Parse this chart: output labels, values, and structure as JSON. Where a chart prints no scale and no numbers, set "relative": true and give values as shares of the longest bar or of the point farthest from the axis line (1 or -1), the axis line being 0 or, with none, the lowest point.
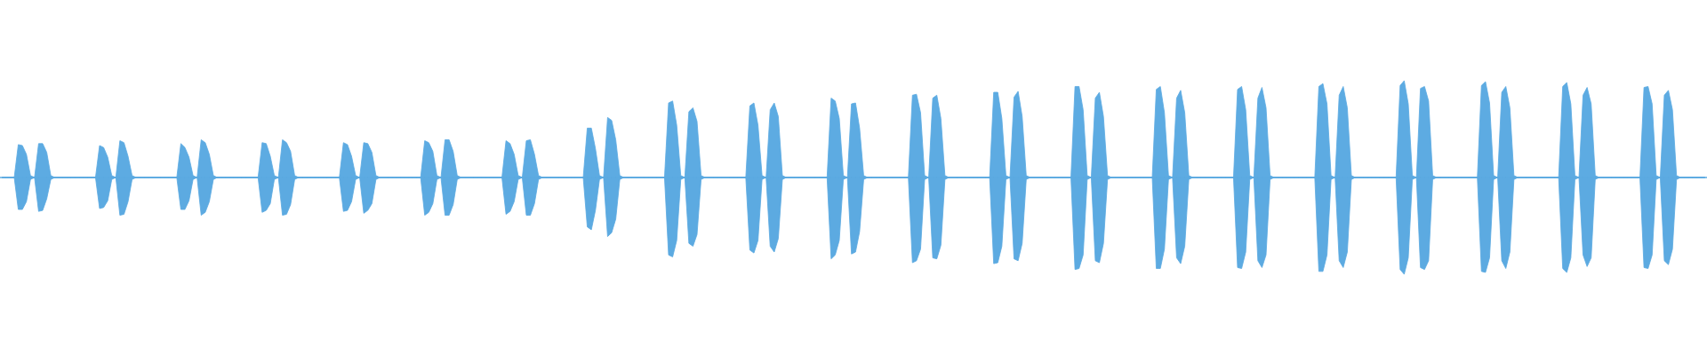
{
  "chart_data": {
    "type": "area",
    "relative": true,
    "categories": [
      null,
      null,
      null,
      null,
      null,
      null,
      null,
      null,
      null,
      null,
      null,
      null,
      null,
      null,
      null,
      null,
      null,
      null,
      null,
      null,
      null,
      null,
      null,
      null,
      null,
      null,
      null,
      null,
      null,
      null,
      null,
      null,
      null,
      null,
      null,
      null,
      null,
      null,
      null,
      null,
      null,
      null,
      null,
      null,
      null,
      null,
      null,
      null,
      null,
      null,
      null,
      null,
      null,
      null,
      null,
      null,
      null,
      null,
      null,
      null,
      null,
      null,
      null,
      null,
      null,
      null,
      null,
      null,
      null,
      null,
      null,
      null,
      null,
      null,
      null,
      null,
      null,
      null,
      null,
      null,
      null,
      null,
      null,
      null,
      null,
      null,
      null,
      null,
      null,
      null,
      null,
      null,
      null,
      null,
      null,
      null,
      null,
      null,
      null,
      null,
      null,
      null,
      null,
      null,
      null,
      null,
      null,
      null,
      null,
      null,
      null,
      null,
      null,
      null,
      null,
      null,
      null,
      null,
      null,
      null,
      null,
      null,
      null,
      null,
      null,
      null,
      null,
      null,
      null,
      null,
      null,
      null,
      null,
      null,
      null,
      null,
      null,
      null,
      null,
      null,
      null,
      null,
      null,
      null,
      null,
      null,
      null,
      null,
      null,
      null,
      null,
      null,
      null,
      null,
      null,
      null,
      null,
      null,
      null,
      null,
      null,
      null,
      null,
      null,
      null,
      null,
      null,
      null,
      null,
      null,
      null,
      null,
      null,
      null,
      null,
      null,
      null,
      null,
      null,
      null,
      null,
      null,
      null,
      null,
      null,
      null,
      null,
      null,
      null,
      null,
      null,
      null,
      null,
      null,
      null,
      null,
      null,
      null,
      null,
      null,
      null,
      null,
      null,
      null,
      null,
      null,
      null,
      null,
      null,
      null,
      null,
      null,
      null,
      null,
      null,
      null,
      null,
      null,
      null,
      null,
      null,
      null,
      null,
      null,
      null,
      null,
      null,
      null,
      null,
      null,
      null,
      null,
      null,
      null,
      null,
      null,
      null,
      null,
      null,
      null,
      null,
      null,
      null,
      null,
      null,
      null,
      null,
      null,
      null,
      null,
      null,
      null,
      null,
      null,
      null,
      null,
      null,
      null,
      null,
      null,
      null,
      null,
      null,
      null,
      null,
      null,
      null,
      null,
      null,
      null,
      null,
      null,
      null,
      null,
      null,
      null,
      null,
      null,
      null,
      null,
      null,
      null,
      null,
      null,
      null,
      null,
      null,
      null,
      null,
      null,
      null,
      null,
      null,
      null,
      null,
      null,
      null,
      null,
      null,
      null,
      null,
      null,
      null,
      null,
      null,
      null,
      null,
      null,
      null,
      null,
      null,
      null,
      null,
      null,
      null,
      null,
      null,
      null,
      null,
      null,
      null,
      null,
      null,
      null,
      null,
      null,
      null,
      null,
      null,
      null,
      null,
      null,
      null,
      null,
      null,
      null,
      null,
      null,
      null,
      null,
      null,
      null,
      null,
      null,
      null,
      null,
      null,
      null,
      null,
      null,
      null,
      null,
      null,
      null,
      null,
      null,
      null,
      null,
      null,
      null,
      null,
      null,
      null,
      null,
      null,
      null,
      null,
      null,
      null,
      null,
      null,
      null,
      null,
      null,
      null,
      null,
      null,
      null,
      null,
      null,
      null,
      null,
      null,
      null,
      null,
      null,
      null,
      null,
      null,
      null,
      null,
      null,
      null,
      null,
      null,
      null,
      null,
      null,
      null,
      null,
      null,
      null,
      null,
      null,
      null,
      null,
      null,
      null,
      null,
      null,
      null,
      null,
      null,
      null,
      null,
      null,
      null,
      null,
      null,
      null
    ],
    "series": [
      {
        "color": "#5dabe2",
        "values": [
          0,
          0,
          0,
          0,
          0.34,
          0.33,
          0.24,
          0.02,
          0,
          0.35,
          0.35,
          0.26,
          0.02,
          0,
          0,
          0,
          0,
          0,
          0,
          0,
          0,
          0,
          0,
          0,
          0.33,
          0.31,
          0.21,
          0.02,
          0,
          0.38,
          0.36,
          0.22,
          0.02,
          0,
          0,
          0,
          0,
          0,
          0,
          0,
          0,
          0,
          0,
          0,
          0.35,
          0.31,
          0.21,
          0.02,
          0,
          0.39,
          0.36,
          0.24,
          0.02,
          0,
          0,
          0,
          0,
          0,
          0,
          0,
          0,
          0,
          0,
          0,
          0.36,
          0.35,
          0.22,
          0.02,
          0,
          0.39,
          0.36,
          0.27,
          0.02,
          0,
          0,
          0,
          0,
          0,
          0,
          0,
          0,
          0,
          0,
          0,
          0.36,
          0.34,
          0.22,
          0.02,
          0,
          0.36,
          0.35,
          0.26,
          0.02,
          0,
          0,
          0,
          0,
          0,
          0,
          0,
          0,
          0,
          0,
          0,
          0.38,
          0.36,
          0.27,
          0.02,
          0,
          0.39,
          0.39,
          0.27,
          0.02,
          0,
          0,
          0,
          0,
          0,
          0,
          0,
          0,
          0,
          0,
          0,
          0.38,
          0.35,
          0.24,
          0.02,
          0,
          0.38,
          0.39,
          0.24,
          0.02,
          0,
          0,
          0,
          0,
          0,
          0,
          0,
          0,
          0,
          0,
          0,
          0.51,
          0.51,
          0.3,
          0.02,
          0,
          0.62,
          0.59,
          0.39,
          0.02,
          0,
          0,
          0,
          0,
          0,
          0,
          0,
          0,
          0,
          0,
          0,
          0.77,
          0.79,
          0.54,
          0.02,
          0,
          0.68,
          0.72,
          0.58,
          0.02,
          0,
          0,
          0,
          0,
          0,
          0,
          0,
          0,
          0,
          0,
          0,
          0.74,
          0.77,
          0.54,
          0.02,
          0,
          0.7,
          0.77,
          0.63,
          0.02,
          0,
          0,
          0,
          0,
          0,
          0,
          0,
          0,
          0,
          0,
          0,
          0.82,
          0.79,
          0.61,
          0.02,
          0,
          0.76,
          0.77,
          0.51,
          0.02,
          0,
          0,
          0,
          0,
          0,
          0,
          0,
          0,
          0,
          0,
          0,
          0.85,
          0.86,
          0.67,
          0.02,
          0,
          0.82,
          0.85,
          0.61,
          0.02,
          0,
          0,
          0,
          0,
          0,
          0,
          0,
          0,
          0,
          0,
          0,
          0.88,
          0.88,
          0.61,
          0.02,
          0,
          0.83,
          0.89,
          0.63,
          0.02,
          0,
          0,
          0,
          0,
          0,
          0,
          0,
          0,
          0,
          0,
          0,
          0.94,
          0.94,
          0.7,
          0.02,
          0,
          0.82,
          0.88,
          0.63,
          0.02,
          0,
          0,
          0,
          0,
          0,
          0,
          0,
          0,
          0,
          0,
          0,
          0.91,
          0.94,
          0.67,
          0.02,
          0,
          0.82,
          0.9,
          0.67,
          0.02,
          0,
          0,
          0,
          0,
          0,
          0,
          0,
          0,
          0,
          0,
          0,
          0.91,
          0.94,
          0.7,
          0.02,
          0,
          0.82,
          0.93,
          0.72,
          0.02,
          0,
          0,
          0,
          0,
          0,
          0,
          0,
          0,
          0,
          0,
          0,
          0.94,
          0.97,
          0.76,
          0.02,
          0,
          0.85,
          0.94,
          0.72,
          0.02,
          0,
          0,
          0,
          0,
          0,
          0,
          0,
          0,
          0,
          0,
          0,
          0.95,
          1.0,
          0.76,
          0.02,
          0,
          0.92,
          0.94,
          0.79,
          0.02,
          0,
          0,
          0,
          0,
          0,
          0,
          0,
          0,
          0,
          0,
          0,
          0.95,
          0.99,
          0.77,
          0.02,
          0,
          0.88,
          0.94,
          0.72,
          0.02,
          0,
          0,
          0,
          0,
          0,
          0,
          0,
          0,
          0,
          0,
          0,
          0.94,
          0.98,
          0.76,
          0.02,
          0,
          0.85,
          0.93,
          0.76,
          0.02,
          0,
          0,
          0,
          0,
          0,
          0,
          0,
          0,
          0,
          0,
          0,
          0.93,
          0.94,
          0.76,
          0.02,
          0,
          0.85,
          0.9,
          0.7,
          0.02,
          0,
          0,
          0,
          0,
          0,
          0,
          0
        ]
      },
      {
        "color": "#5caae1",
        "values": [
          0,
          0,
          0,
          0,
          -0.33,
          -0.33,
          -0.25,
          -0.02,
          0,
          -0.35,
          -0.34,
          -0.22,
          -0.02,
          0,
          0,
          0,
          0,
          0,
          0,
          0,
          0,
          0,
          0,
          0,
          -0.32,
          -0.31,
          -0.24,
          -0.02,
          0,
          -0.39,
          -0.38,
          -0.25,
          -0.02,
          0,
          0,
          0,
          0,
          0,
          0,
          0,
          0,
          0,
          0,
          0,
          -0.33,
          -0.33,
          -0.24,
          -0.02,
          0,
          -0.39,
          -0.36,
          -0.25,
          -0.02,
          0,
          0,
          0,
          0,
          0,
          0,
          0,
          0,
          0,
          0,
          0,
          -0.36,
          -0.34,
          -0.27,
          -0.02,
          0,
          -0.39,
          -0.38,
          -0.28,
          -0.02,
          0,
          0,
          0,
          0,
          0,
          0,
          0,
          0,
          0,
          0,
          0,
          -0.35,
          -0.34,
          -0.25,
          -0.02,
          0,
          -0.37,
          -0.34,
          -0.27,
          -0.02,
          0,
          0,
          0,
          0,
          0,
          0,
          0,
          0,
          0,
          0,
          0,
          -0.39,
          -0.36,
          -0.27,
          -0.02,
          0,
          -0.39,
          -0.39,
          -0.28,
          -0.02,
          0,
          0,
          0,
          0,
          0,
          0,
          0,
          0,
          0,
          0,
          0,
          -0.38,
          -0.35,
          -0.25,
          -0.02,
          0,
          -0.39,
          -0.39,
          -0.27,
          -0.02,
          0,
          0,
          0,
          0,
          0,
          0,
          0,
          0,
          0,
          0,
          0,
          -0.51,
          -0.54,
          -0.34,
          -0.02,
          0,
          -0.61,
          -0.57,
          -0.43,
          -0.02,
          0,
          0,
          0,
          0,
          0,
          0,
          0,
          0,
          0,
          0,
          0,
          -0.8,
          -0.82,
          -0.65,
          -0.02,
          0,
          -0.68,
          -0.71,
          -0.59,
          -0.02,
          0,
          0,
          0,
          0,
          0,
          0,
          0,
          0,
          0,
          0,
          0,
          -0.75,
          -0.78,
          -0.65,
          -0.02,
          0,
          -0.71,
          -0.77,
          -0.63,
          -0.02,
          0,
          0,
          0,
          0,
          0,
          0,
          0,
          0,
          0,
          0,
          0,
          -0.84,
          -0.8,
          -0.65,
          -0.02,
          0,
          -0.79,
          -0.77,
          -0.56,
          -0.02,
          0,
          0,
          0,
          0,
          0,
          0,
          0,
          0,
          0,
          0,
          0,
          -0.88,
          -0.86,
          -0.74,
          -0.02,
          0,
          -0.83,
          -0.84,
          -0.7,
          -0.02,
          0,
          0,
          0,
          0,
          0,
          0,
          0,
          0,
          0,
          0,
          0,
          -0.89,
          -0.88,
          -0.71,
          -0.02,
          0,
          -0.84,
          -0.86,
          -0.68,
          -0.02,
          0,
          0,
          0,
          0,
          0,
          0,
          0,
          0,
          0,
          0,
          0,
          -0.95,
          -0.94,
          -0.8,
          -0.02,
          0,
          -0.86,
          -0.88,
          -0.68,
          -0.02,
          0,
          0,
          0,
          0,
          0,
          0,
          0,
          0,
          0,
          0,
          0,
          -0.94,
          -0.94,
          -0.74,
          -0.02,
          0,
          -0.83,
          -0.89,
          -0.71,
          -0.02,
          0,
          0,
          0,
          0,
          0,
          0,
          0,
          0,
          0,
          0,
          0,
          -0.93,
          -0.94,
          -0.77,
          -0.02,
          0,
          -0.86,
          -0.93,
          -0.8,
          -0.02,
          0,
          0,
          0,
          0,
          0,
          0,
          0,
          0,
          0,
          0,
          0,
          -0.97,
          -0.97,
          -0.8,
          -0.02,
          0,
          -0.86,
          -0.93,
          -0.77,
          -0.02,
          0,
          0,
          0,
          0,
          0,
          0,
          0,
          0,
          0,
          0,
          0,
          -0.95,
          -1.0,
          -0.83,
          -0.02,
          0,
          -0.93,
          -0.95,
          -0.86,
          -0.02,
          0,
          0,
          0,
          0,
          0,
          0,
          0,
          0,
          0,
          0,
          0,
          -0.97,
          -0.98,
          -0.83,
          -0.02,
          0,
          -0.86,
          -0.94,
          -0.77,
          -0.02,
          0,
          0,
          0,
          0,
          0,
          0,
          0,
          0,
          0,
          0,
          0,
          -0.94,
          -0.98,
          -0.83,
          -0.02,
          0,
          -0.8,
          -0.92,
          -0.83,
          -0.02,
          0,
          0,
          0,
          0,
          0,
          0,
          0,
          0,
          0,
          0,
          0,
          -0.93,
          -0.94,
          -0.8,
          -0.02,
          0,
          -0.86,
          -0.9,
          -0.74,
          -0.02,
          0,
          0,
          0,
          0,
          0,
          0,
          0
        ]
      }
    ]
  }
}
